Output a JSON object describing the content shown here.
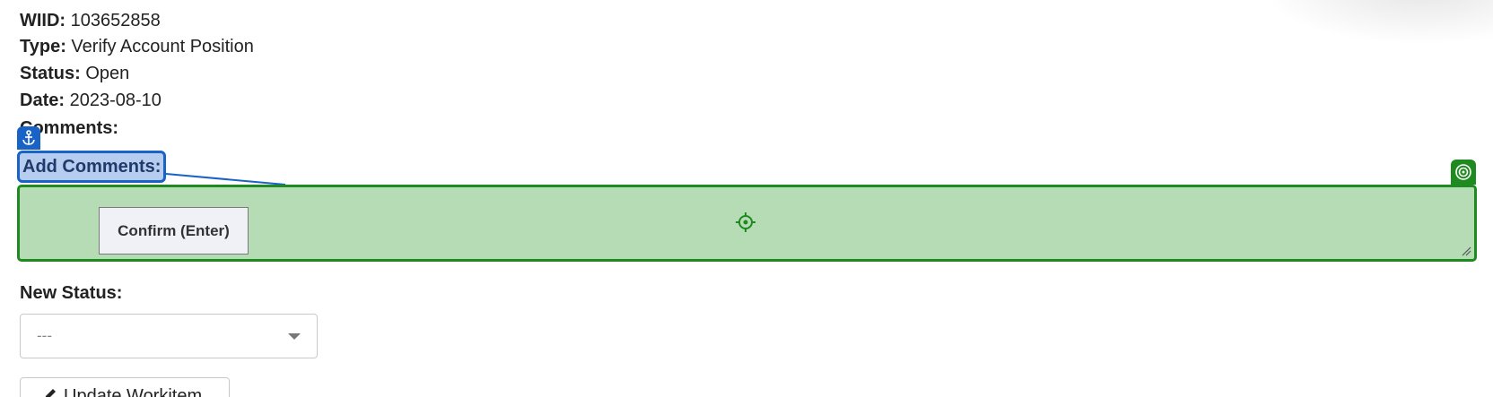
{
  "workitem": {
    "wiid_label": "WIID:",
    "wiid_value": "103652858",
    "type_label": "Type:",
    "type_value": "Verify Account Position",
    "status_label": "Status:",
    "status_value": "Open",
    "date_label": "Date:",
    "date_value": "2023-08-10",
    "comments_label": "Comments:"
  },
  "add_comments": {
    "label": "Add Comments:",
    "textarea_value": ""
  },
  "confirm_button": {
    "label": "Confirm (Enter)"
  },
  "new_status": {
    "label": "New Status:",
    "selected": "---"
  },
  "update_button": {
    "label": "Update Workitem",
    "icon": "pencil-icon"
  },
  "overlay": {
    "anchor_icon": "anchor-icon",
    "target_icon": "target-icon",
    "crosshair_icon": "crosshair-icon",
    "anchor_color": "#1a63c6",
    "target_color": "#1f8a1f"
  }
}
